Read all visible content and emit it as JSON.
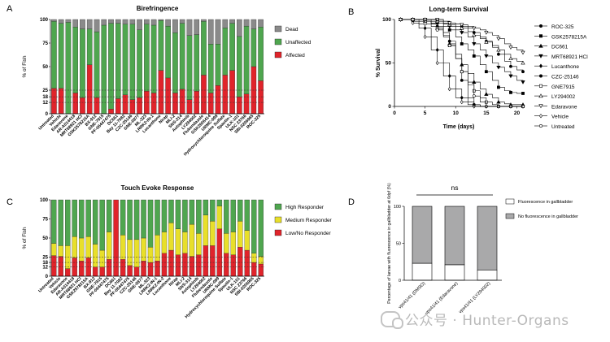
{
  "colors": {
    "dead": "#8a8a8a",
    "unaffected": "#4fa64f",
    "affected": "#e0242b",
    "high": "#4fa64f",
    "medium": "#e8df2a",
    "low": "#e0242b",
    "fluor_no": "#a9a9aa",
    "fluor_yes": "#ffffff"
  },
  "panels": {
    "a_letter": "A",
    "b_letter": "B",
    "c_letter": "C",
    "d_letter": "D"
  },
  "watermark": {
    "text": "公众号 · Hunter-Organs"
  },
  "chart_data": [
    {
      "id": "A",
      "type": "bar",
      "stacked": true,
      "title": "Birefringence",
      "ylabel": "% of Fish",
      "ylim": [
        0,
        100
      ],
      "yticks": [
        "0",
        "12",
        "18",
        "25",
        "50",
        "75",
        "100"
      ],
      "ytick_values": [
        0,
        12,
        18,
        25,
        50,
        75,
        100
      ],
      "dashed_lines": [
        12,
        18,
        25
      ],
      "categories": [
        "Untreated",
        "Vehicle",
        "Edaravone",
        "AR-A014418",
        "MRT68921 HCl",
        "GSK2578215A",
        "BX-912",
        "GNE-7915",
        "PF-06447475",
        "DC661",
        "Bay 11-7082",
        "CZC-25146",
        "GNE-0877",
        "ML-323",
        "LRRK2-IN-1",
        "Lucanthone",
        "Nirap",
        "MLi-2",
        "SNS-314",
        "Autophinib",
        "LY294002",
        "Flubendazole",
        "GSK2606414",
        "URMC-099",
        "Hydroxychloroquine Sulfate",
        "Spautin-1",
        "ULK-101",
        "NSC 23766",
        "SBI-0206965",
        "ROC-325"
      ],
      "series": [
        {
          "name": "Affected",
          "values": [
            27,
            27,
            0,
            22,
            17,
            52,
            17,
            0,
            5,
            16,
            20,
            15,
            17,
            24,
            22,
            46,
            38,
            22,
            26,
            15,
            24,
            41,
            22,
            30,
            41,
            46,
            18,
            21,
            50,
            35
          ]
        },
        {
          "name": "Unaffected",
          "values": [
            71,
            69,
            97,
            70,
            73,
            38,
            70,
            94,
            91,
            80,
            75,
            80,
            72,
            71,
            72,
            53,
            55,
            64,
            70,
            68,
            60,
            57,
            52,
            44,
            50,
            50,
            64,
            72,
            40,
            57
          ]
        },
        {
          "name": "Dead",
          "values": [
            2,
            4,
            3,
            8,
            10,
            10,
            13,
            6,
            4,
            4,
            5,
            5,
            11,
            5,
            6,
            1,
            7,
            14,
            4,
            17,
            16,
            2,
            26,
            26,
            9,
            4,
            18,
            7,
            10,
            8
          ]
        }
      ],
      "legend": [
        "Dead",
        "Unaffected",
        "Affected"
      ],
      "legend_position": "right"
    },
    {
      "id": "B",
      "type": "line",
      "title": "Long-term Survival",
      "xlabel": "Time (days)",
      "ylabel": "% Survival",
      "xlim": [
        0,
        21
      ],
      "ylim": [
        0,
        100
      ],
      "xticks": [
        "0",
        "5",
        "10",
        "15",
        "20"
      ],
      "xtick_values": [
        0,
        5,
        10,
        15,
        20
      ],
      "yticks": [
        "0",
        "50",
        "100"
      ],
      "ytick_values": [
        0,
        50,
        100
      ],
      "legend_position": "right",
      "series": [
        {
          "name": "ROC-325",
          "marker": "dot",
          "x": [
            1,
            2,
            3,
            4,
            5,
            6,
            7,
            8,
            9,
            10,
            11,
            12,
            13,
            14,
            15,
            16,
            17,
            18,
            19,
            20,
            21
          ],
          "values": [
            100,
            100,
            100,
            100,
            98,
            95,
            92,
            85,
            75,
            55,
            30,
            10,
            2,
            0,
            0,
            0,
            0,
            0,
            0,
            0,
            0
          ]
        },
        {
          "name": "GSK2578215A",
          "marker": "square",
          "x": [
            1,
            2,
            3,
            4,
            5,
            6,
            7,
            8,
            9,
            10,
            11,
            12,
            13,
            14,
            15,
            16,
            17,
            18,
            19,
            20,
            21
          ],
          "values": [
            100,
            100,
            100,
            100,
            100,
            98,
            96,
            92,
            88,
            80,
            72,
            65,
            58,
            48,
            40,
            30,
            22,
            18,
            16,
            15,
            15
          ]
        },
        {
          "name": "DC661",
          "marker": "triangle",
          "x": [
            1,
            2,
            3,
            4,
            5,
            6,
            7,
            8,
            9,
            10,
            11,
            12,
            13,
            14,
            15,
            16,
            17,
            18,
            19,
            20,
            21
          ],
          "values": [
            100,
            100,
            100,
            100,
            98,
            96,
            90,
            82,
            72,
            60,
            48,
            38,
            28,
            20,
            14,
            10,
            5,
            3,
            2,
            2,
            2
          ]
        },
        {
          "name": "MRT68921 HCl",
          "marker": "triangle-down",
          "x": [
            1,
            2,
            3,
            4,
            5,
            6,
            7,
            8,
            9,
            10,
            11,
            12,
            13,
            14,
            15,
            16,
            17,
            18,
            19,
            20,
            21
          ],
          "values": [
            100,
            100,
            100,
            100,
            100,
            100,
            98,
            95,
            92,
            88,
            85,
            80,
            72,
            65,
            58,
            50,
            45,
            40,
            35,
            30,
            28
          ]
        },
        {
          "name": "Lucanthone",
          "marker": "diamond",
          "x": [
            1,
            2,
            3,
            4,
            5,
            6,
            7,
            8,
            9,
            10,
            11,
            12,
            13,
            14,
            15,
            16,
            17,
            18,
            19,
            20,
            21
          ],
          "values": [
            100,
            100,
            98,
            95,
            90,
            80,
            65,
            50,
            35,
            20,
            10,
            5,
            2,
            0,
            0,
            0,
            0,
            0,
            0,
            0,
            0
          ]
        },
        {
          "name": "CZC-25146",
          "marker": "circle",
          "x": [
            1,
            2,
            3,
            4,
            5,
            6,
            7,
            8,
            9,
            10,
            11,
            12,
            13,
            14,
            15,
            16,
            17,
            18,
            19,
            20,
            21
          ],
          "values": [
            100,
            100,
            100,
            100,
            100,
            100,
            100,
            98,
            96,
            95,
            92,
            90,
            85,
            80,
            75,
            68,
            60,
            52,
            46,
            42,
            40
          ]
        },
        {
          "name": "GNE7915",
          "marker": "open-square",
          "x": [
            1,
            2,
            3,
            4,
            5,
            6,
            7,
            8,
            9,
            10,
            11,
            12,
            13,
            14,
            15,
            16,
            17,
            18,
            19,
            20,
            21
          ],
          "values": [
            100,
            100,
            100,
            100,
            98,
            95,
            90,
            82,
            70,
            55,
            40,
            28,
            18,
            10,
            5,
            2,
            0,
            0,
            0,
            0,
            0
          ]
        },
        {
          "name": "LY294002",
          "marker": "open-triangle",
          "x": [
            1,
            2,
            3,
            4,
            5,
            6,
            7,
            8,
            9,
            10,
            11,
            12,
            13,
            14,
            15,
            16,
            17,
            18,
            19,
            20,
            21
          ],
          "values": [
            100,
            100,
            100,
            100,
            100,
            100,
            98,
            96,
            94,
            92,
            90,
            86,
            82,
            78,
            74,
            70,
            65,
            60,
            55,
            52,
            50
          ]
        },
        {
          "name": "Edaravone",
          "marker": "open-triangle-down",
          "x": [
            1,
            2,
            3,
            4,
            5,
            6,
            7,
            8,
            9,
            10,
            11,
            12,
            13,
            14,
            15,
            16,
            17,
            18,
            19,
            20,
            21
          ],
          "values": [
            100,
            100,
            100,
            100,
            100,
            100,
            100,
            98,
            96,
            95,
            94,
            92,
            90,
            88,
            85,
            82,
            78,
            72,
            68,
            65,
            62
          ]
        },
        {
          "name": "Vehicle",
          "marker": "open-diamond",
          "x": [
            1,
            2,
            3,
            4,
            5,
            6,
            7,
            8,
            9,
            10,
            11,
            12,
            13,
            14,
            15,
            16,
            17,
            18,
            19,
            20,
            21
          ],
          "values": [
            100,
            100,
            96,
            90,
            80,
            65,
            50,
            35,
            20,
            10,
            5,
            2,
            0,
            0,
            0,
            0,
            0,
            0,
            0,
            0,
            0
          ]
        },
        {
          "name": "Untreated",
          "marker": "open-circle",
          "x": [
            1,
            2,
            3,
            4,
            5,
            6,
            7,
            8,
            9,
            10,
            11,
            12,
            13,
            14,
            15,
            16,
            17,
            18,
            19,
            20,
            21
          ],
          "values": [
            100,
            100,
            100,
            98,
            95,
            92,
            88,
            80,
            70,
            55,
            40,
            25,
            12,
            5,
            0,
            0,
            0,
            0,
            0,
            0,
            0
          ]
        }
      ]
    },
    {
      "id": "C",
      "type": "bar",
      "stacked": true,
      "title": "Touch Evoke Response",
      "ylabel": "% of Fish",
      "ylim": [
        0,
        100
      ],
      "yticks": [
        "0",
        "12",
        "18",
        "25",
        "50",
        "75",
        "100"
      ],
      "ytick_values": [
        0,
        12,
        18,
        25,
        50,
        75,
        100
      ],
      "dashed_lines": [
        12,
        18,
        25
      ],
      "categories": [
        "Untreated",
        "Vehicle",
        "Edaravone",
        "AR-A014418",
        "MRT68921 HCl",
        "GSK2578215A",
        "BX-912",
        "GNE-7915",
        "PF-06447475",
        "DC661",
        "Bay 11-7082",
        "PF-06447475",
        "CZC-25146",
        "GNE-0877",
        "ML-323",
        "LRRK2-IN-1",
        "LRRK2-IN-2",
        "Lucanthone",
        "Nirap",
        "MLi-2",
        "SNS-314",
        "Autophinib",
        "LY294002",
        "Flubendazole",
        "URMC-099",
        "Hydroxychloroquine Sulfate",
        "Spautin-1",
        "ULK-101",
        "NSC 23766",
        "SBI-0206965",
        "ROC-325"
      ],
      "series": [
        {
          "name": "Low/No Responder",
          "values": [
            27,
            26,
            10,
            24,
            20,
            24,
            12,
            12,
            22,
            100,
            22,
            14,
            12,
            20,
            18,
            20,
            30,
            34,
            28,
            30,
            26,
            28,
            40,
            40,
            62,
            30,
            28,
            38,
            34,
            18,
            16
          ]
        },
        {
          "name": "Medium Responder",
          "values": [
            16,
            14,
            30,
            28,
            30,
            28,
            30,
            22,
            36,
            0,
            32,
            34,
            36,
            30,
            20,
            34,
            28,
            36,
            34,
            28,
            42,
            28,
            40,
            32,
            30,
            26,
            30,
            34,
            26,
            12,
            10
          ]
        },
        {
          "name": "High Responder",
          "values": [
            57,
            60,
            60,
            48,
            50,
            48,
            58,
            66,
            42,
            0,
            46,
            52,
            52,
            50,
            62,
            46,
            42,
            30,
            38,
            42,
            32,
            44,
            20,
            28,
            8,
            44,
            42,
            28,
            40,
            70,
            74
          ]
        }
      ],
      "legend": [
        "High Responder",
        "Medium Responder",
        "Low/No Responder"
      ],
      "legend_position": "right"
    },
    {
      "id": "D",
      "type": "bar",
      "stacked": true,
      "title": "",
      "ylabel": "Percentage of larvae with fluorescence in gallbladder at 6dpf (%)",
      "ylim": [
        0,
        100
      ],
      "yticks": [
        "0",
        "50",
        "100"
      ],
      "ytick_values": [
        0,
        50,
        100
      ],
      "categories": [
        "vps41/41 (DMSO)",
        "vps41/41 (Edaravone)",
        "vps41/41 (LY294002)"
      ],
      "series": [
        {
          "name": "Fluorescence in gallbladder",
          "values": [
            23,
            21,
            14
          ]
        },
        {
          "name": "No fluorescence in gallbladder",
          "values": [
            77,
            79,
            86
          ]
        }
      ],
      "annotation": "ns",
      "legend": [
        "Fluorescence in gallbladder",
        "No fluorescence in gallbladder"
      ],
      "legend_position": "right"
    }
  ]
}
